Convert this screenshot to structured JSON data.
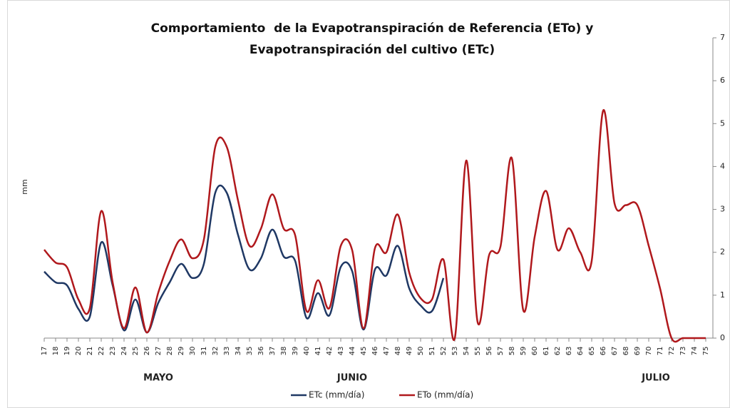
{
  "chart_data": {
    "type": "line",
    "title": [
      "Comportamiento  de la Evapotranspiración de Referencia (ETo) y",
      "Evapotranspiración del cultivo (ETc)"
    ],
    "y_label": "mm",
    "month_labels": [
      "MAYO",
      "JUNIO",
      "JULIO"
    ],
    "categories": [
      17,
      18,
      19,
      20,
      21,
      22,
      23,
      24,
      25,
      26,
      27,
      28,
      29,
      30,
      31,
      32,
      33,
      34,
      35,
      36,
      37,
      38,
      39,
      40,
      41,
      42,
      43,
      44,
      45,
      46,
      47,
      48,
      49,
      50,
      51,
      52,
      53,
      54,
      55,
      56,
      57,
      58,
      59,
      60,
      61,
      62,
      63,
      64,
      65,
      66,
      67,
      68,
      69,
      70,
      71,
      72,
      73,
      74,
      75
    ],
    "series": [
      {
        "name": "ETc (mm/día)",
        "color": "#1f3864",
        "values": [
          1.55,
          1.3,
          1.23,
          0.68,
          0.5,
          2.23,
          1.23,
          0.18,
          0.9,
          0.13,
          0.82,
          1.3,
          1.73,
          1.4,
          1.73,
          3.39,
          3.39,
          2.4,
          1.6,
          1.86,
          2.53,
          1.9,
          1.8,
          0.47,
          1.05,
          0.53,
          1.66,
          1.56,
          0.2,
          1.6,
          1.46,
          2.15,
          1.16,
          0.76,
          0.63,
          1.4,
          null,
          null,
          null,
          null,
          null,
          null,
          null,
          null,
          null,
          null,
          null,
          null,
          null,
          null,
          null,
          null,
          null,
          null,
          null,
          null,
          null,
          null,
          null
        ]
      },
      {
        "name": "ETo (mm/día)",
        "color": "#b0181c",
        "values": [
          2.06,
          1.76,
          1.65,
          0.9,
          0.7,
          2.96,
          1.3,
          0.23,
          1.18,
          0.13,
          1.06,
          1.8,
          2.3,
          1.86,
          2.3,
          4.46,
          4.46,
          3.2,
          2.15,
          2.55,
          3.35,
          2.55,
          2.4,
          0.63,
          1.35,
          0.7,
          2.15,
          2.05,
          0.23,
          2.1,
          2.0,
          2.88,
          1.53,
          0.93,
          0.9,
          1.83,
          0,
          4.14,
          0.37,
          1.93,
          2.13,
          4.19,
          0.65,
          2.36,
          3.43,
          2.06,
          2.56,
          2.0,
          1.8,
          5.3,
          3.14,
          3.1,
          3.1,
          2.15,
          1.15,
          0,
          0,
          0,
          0
        ]
      }
    ],
    "ylim": [
      0,
      7
    ],
    "yticks": [
      0,
      1,
      2,
      3,
      4,
      5,
      6,
      7
    ],
    "y_axis_side": "right",
    "smooth": true
  }
}
